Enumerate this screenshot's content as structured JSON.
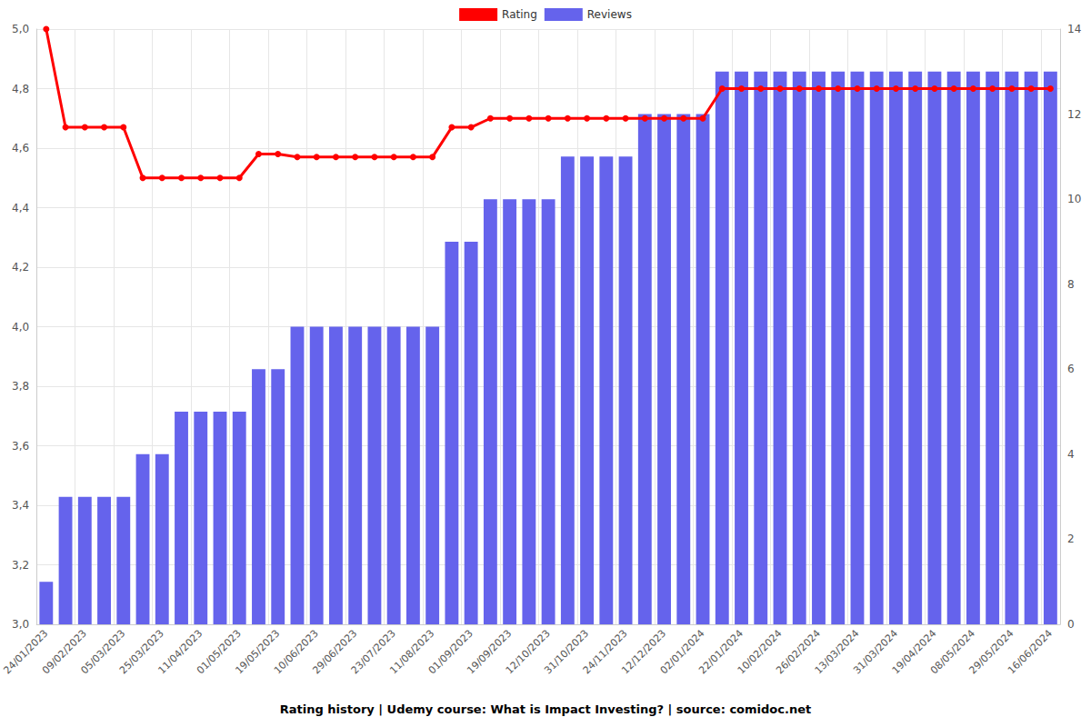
{
  "chart_data": {
    "type": "bar",
    "title": "Rating history | Udemy course: What is Impact Investing? | source: comidoc.net",
    "categories": [
      "24/01/2023",
      null,
      "09/02/2023",
      null,
      "05/03/2023",
      null,
      "25/03/2023",
      null,
      "11/04/2023",
      null,
      "01/05/2023",
      null,
      "19/05/2023",
      null,
      "10/06/2023",
      null,
      "29/06/2023",
      null,
      "23/07/2023",
      null,
      "11/08/2023",
      null,
      "01/09/2023",
      null,
      "19/09/2023",
      null,
      "12/10/2023",
      null,
      "31/10/2023",
      null,
      "24/11/2023",
      null,
      "12/12/2023",
      null,
      "02/01/2024",
      null,
      "22/01/2024",
      null,
      "10/02/2024",
      null,
      "26/02/2024",
      null,
      "13/03/2024",
      null,
      "31/03/2024",
      null,
      "19/04/2024",
      null,
      "08/05/2024",
      null,
      "29/05/2024",
      null,
      "16/06/2024"
    ],
    "series": [
      {
        "name": "Rating",
        "type": "line",
        "color": "#ff0000",
        "marker": "circle",
        "line_style": "solid",
        "values": [
          5.0,
          4.67,
          4.67,
          4.67,
          4.67,
          4.5,
          4.5,
          4.5,
          4.5,
          4.5,
          4.5,
          4.58,
          4.58,
          4.57,
          4.57,
          4.57,
          4.57,
          4.57,
          4.57,
          4.57,
          4.57,
          4.67,
          4.67,
          4.7,
          4.7,
          4.7,
          4.7,
          4.7,
          4.7,
          4.7,
          4.7,
          4.7,
          4.7,
          4.7,
          4.7,
          4.8,
          4.8,
          4.8,
          4.8,
          4.8,
          4.8,
          4.8,
          4.8,
          4.8,
          4.8,
          4.8,
          4.8,
          4.8,
          4.8,
          4.8,
          4.8,
          4.8,
          4.8
        ]
      },
      {
        "name": "Reviews",
        "type": "bar",
        "color": "#6563ec",
        "axis": "y2",
        "values": [
          1,
          3,
          3,
          3,
          3,
          4,
          4,
          5,
          5,
          5,
          5,
          6,
          6,
          7,
          7,
          7,
          7,
          7,
          7,
          7,
          7,
          9,
          9,
          10,
          10,
          10,
          10,
          11,
          11,
          11,
          11,
          12,
          12,
          12,
          12,
          13,
          13,
          13,
          13,
          13,
          13,
          13,
          13,
          13,
          13,
          13,
          13,
          13,
          13,
          13,
          13,
          13,
          13
        ]
      }
    ],
    "ylim": [
      3.0,
      5.0
    ],
    "yticks": [
      {
        "value": 3.0,
        "label": "3,0"
      },
      {
        "value": 3.2,
        "label": "3,2"
      },
      {
        "value": 3.4,
        "label": "3,4"
      },
      {
        "value": 3.6,
        "label": "3,6"
      },
      {
        "value": 3.8,
        "label": "3,8"
      },
      {
        "value": 4.0,
        "label": "4,0"
      },
      {
        "value": 4.2,
        "label": "4,2"
      },
      {
        "value": 4.4,
        "label": "4,4"
      },
      {
        "value": 4.6,
        "label": "4,6"
      },
      {
        "value": 4.8,
        "label": "4,8"
      },
      {
        "value": 5.0,
        "label": "5,0"
      }
    ],
    "y2lim": [
      0,
      14
    ],
    "y2ticks": [
      0,
      2,
      4,
      6,
      8,
      10,
      12,
      14
    ],
    "grid": true,
    "legend": "top"
  }
}
